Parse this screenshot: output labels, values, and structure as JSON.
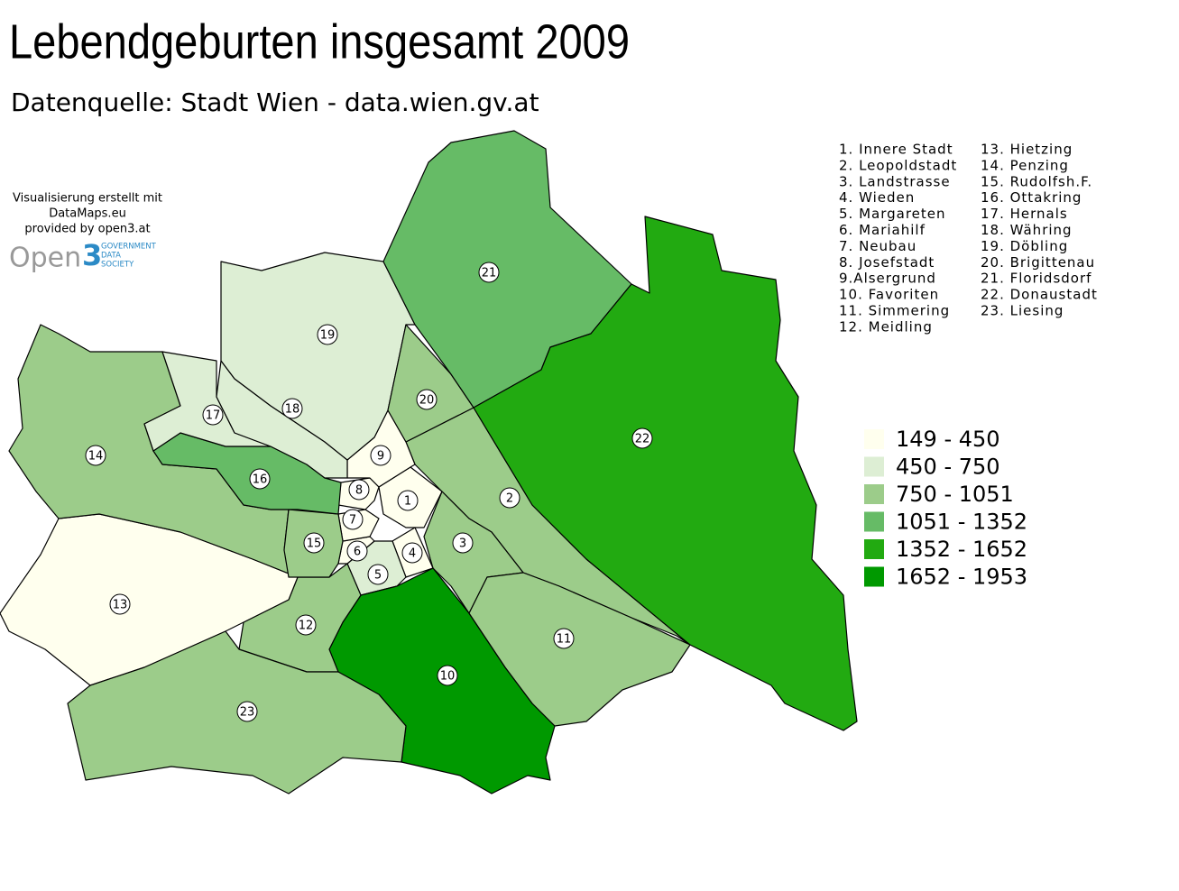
{
  "title": "Lebendgeburten insgesamt 2009",
  "subtitle": "Datenquelle: Stadt Wien - data.wien.gv.at",
  "credits": [
    "Visualisierung erstellt mit",
    "DataMaps.eu",
    "provided by open3.at"
  ],
  "logo": {
    "word": "Open",
    "digit": "3",
    "lines": [
      "GOVERNMENT",
      "DATA",
      "SOCIETY"
    ]
  },
  "district_list": [
    "1. Innere Stadt",
    "2. Leopoldstadt",
    "3. Landstrasse",
    "4. Wieden",
    "5. Margareten",
    "6. Mariahilf",
    "7. Neubau",
    "8. Josefstadt",
    "9.Alsergrund",
    "10. Favoriten",
    "11. Simmering",
    "12. Meidling",
    "13. Hietzing",
    "14. Penzing",
    "15. Rudolfsh.F.",
    "16. Ottakring",
    "17. Hernals",
    "18. Währing",
    "19. Döbling",
    "20. Brigittenau",
    "21. Floridsdorf",
    "22. Donaustadt",
    "23. Liesing"
  ],
  "legend": [
    {
      "label": "149 - 450",
      "color": "#ffffee"
    },
    {
      "label": "450 - 750",
      "color": "#ddeed4"
    },
    {
      "label": "750 - 1051",
      "color": "#9ccc8a"
    },
    {
      "label": "1051 - 1352",
      "color": "#66bb66"
    },
    {
      "label": "1352 - 1652",
      "color": "#22aa11"
    },
    {
      "label": "1652 - 1953",
      "color": "#009900"
    }
  ],
  "districts": [
    {
      "label": "1",
      "color": "#ffffee"
    },
    {
      "label": "2",
      "color": "#9ccc8a"
    },
    {
      "label": "3",
      "color": "#9ccc8a"
    },
    {
      "label": "4",
      "color": "#ffffee"
    },
    {
      "label": "5",
      "color": "#ddeed4"
    },
    {
      "label": "6",
      "color": "#ffffee"
    },
    {
      "label": "7",
      "color": "#ffffee"
    },
    {
      "label": "8",
      "color": "#ffffee"
    },
    {
      "label": "9",
      "color": "#ffffee"
    },
    {
      "label": "10",
      "color": "#009900"
    },
    {
      "label": "11",
      "color": "#9ccc8a"
    },
    {
      "label": "12",
      "color": "#9ccc8a"
    },
    {
      "label": "13",
      "color": "#ffffee"
    },
    {
      "label": "14",
      "color": "#9ccc8a"
    },
    {
      "label": "15",
      "color": "#9ccc8a"
    },
    {
      "label": "16",
      "color": "#66bb66"
    },
    {
      "label": "17",
      "color": "#ddeed4"
    },
    {
      "label": "18",
      "color": "#ddeed4"
    },
    {
      "label": "19",
      "color": "#ddeed4"
    },
    {
      "label": "20",
      "color": "#9ccc8a"
    },
    {
      "label": "21",
      "color": "#66bb66"
    },
    {
      "label": "22",
      "color": "#22aa11"
    },
    {
      "label": "23",
      "color": "#9ccc8a"
    }
  ]
}
